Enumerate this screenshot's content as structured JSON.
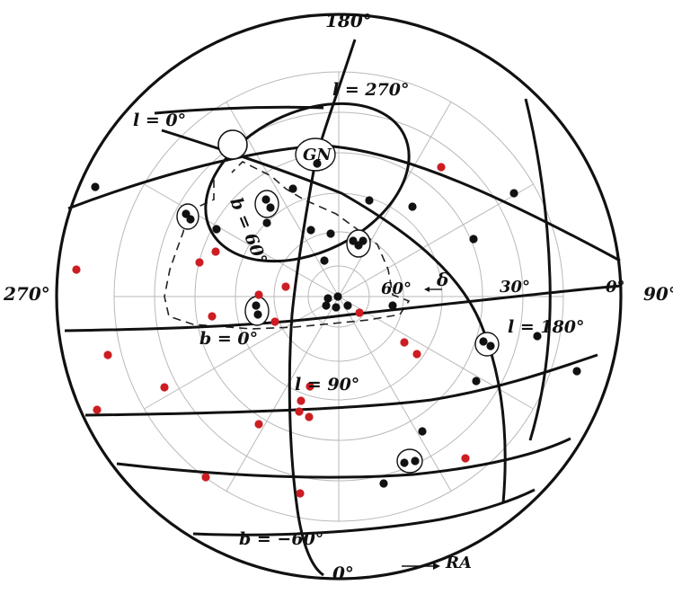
{
  "colors": {
    "black_point": "#111111",
    "red_point": "#cc1d22",
    "grid": "#b9b9b9"
  },
  "labels": {
    "top": "180°",
    "bottom": "0°",
    "left": "270°",
    "right": "90°",
    "ra_arrow": "RA",
    "ra_0": "0°",
    "ra_30": "30°",
    "dec_60": "60°",
    "delta": "δ",
    "l_0": "l = 0°",
    "l_90": "l = 90°",
    "l_180": "l = 180°",
    "l_270": "l = 270°",
    "b_0": "b = 0°",
    "b_60": "b = 60°",
    "b_minus60": "b = −60°",
    "gn": "GN"
  }
}
